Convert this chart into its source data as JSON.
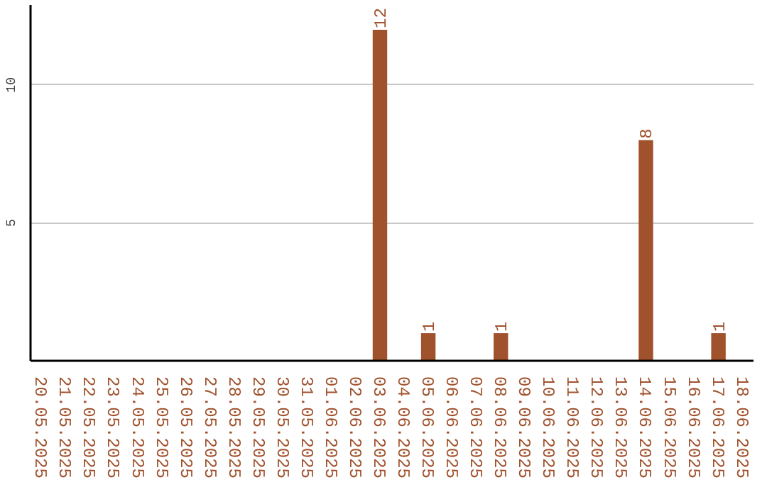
{
  "chart_data": {
    "type": "bar",
    "categories": [
      "20.05.2025",
      "21.05.2025",
      "22.05.2025",
      "23.05.2025",
      "24.05.2025",
      "25.05.2025",
      "26.05.2025",
      "27.05.2025",
      "28.05.2025",
      "29.05.2025",
      "30.05.2025",
      "31.05.2025",
      "01.06.2025",
      "02.06.2025",
      "03.06.2025",
      "04.06.2025",
      "05.06.2025",
      "06.06.2025",
      "07.06.2025",
      "08.06.2025",
      "09.06.2025",
      "10.06.2025",
      "11.06.2025",
      "12.06.2025",
      "13.06.2025",
      "14.06.2025",
      "15.06.2025",
      "16.06.2025",
      "17.06.2025",
      "18.06.2025"
    ],
    "values": [
      0,
      0,
      0,
      0,
      0,
      0,
      0,
      0,
      0,
      0,
      0,
      0,
      0,
      0,
      12,
      0,
      1,
      0,
      0,
      1,
      0,
      0,
      0,
      0,
      0,
      8,
      0,
      0,
      1,
      0
    ],
    "value_labels": [
      null,
      null,
      null,
      null,
      null,
      null,
      null,
      null,
      null,
      null,
      null,
      null,
      null,
      null,
      "12",
      null,
      "1",
      null,
      null,
      "1",
      null,
      null,
      null,
      null,
      null,
      "8",
      null,
      null,
      "1",
      null
    ],
    "color": "#a0522d",
    "ylim": [
      0,
      12.9
    ],
    "yticks": [
      5,
      10
    ],
    "grid": "y"
  }
}
